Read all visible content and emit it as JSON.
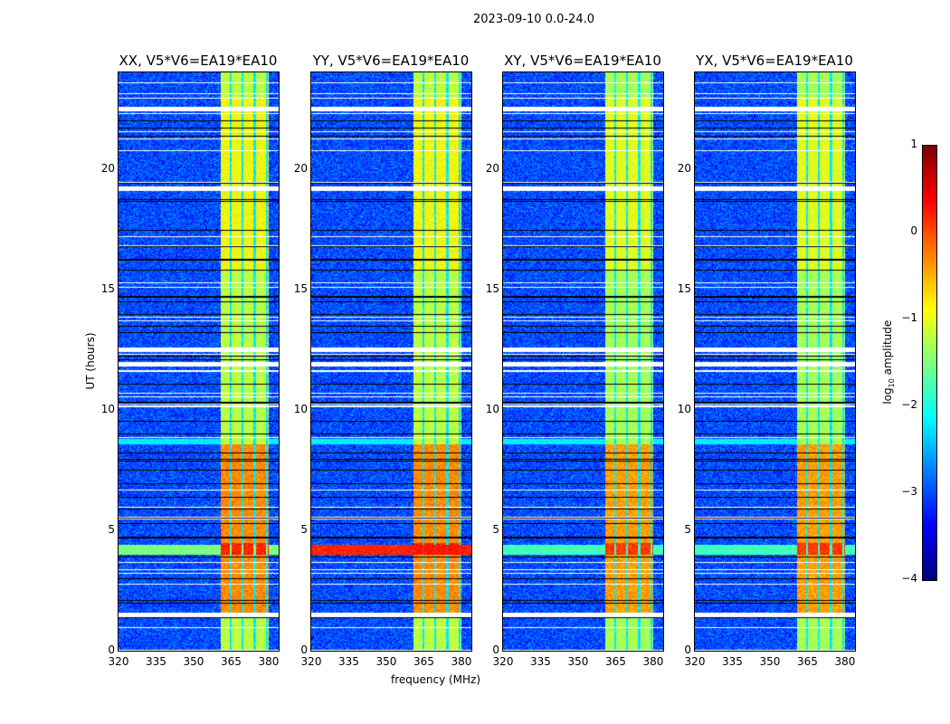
{
  "chart_data": {
    "type": "heatmap",
    "title": "2023-09-10 0.0-24.0",
    "xlabel": "frequency (MHz)",
    "ylabel": "UT (hours)",
    "xlim": [
      320,
      384
    ],
    "ylim": [
      0,
      24
    ],
    "xticks": [
      "320",
      "335",
      "350",
      "365",
      "380"
    ],
    "yticks": [
      "0",
      "5",
      "10",
      "15",
      "20"
    ],
    "panels": [
      {
        "title": "XX, V5*V6=EA19*EA10",
        "band_level": -1.2,
        "rfi_4h_level": -1.5
      },
      {
        "title": "YY, V5*V6=EA19*EA10",
        "band_level": -1.2,
        "rfi_4h_level": 0.2
      },
      {
        "title": "XY, V5*V6=EA19*EA10",
        "band_level": -1.3,
        "rfi_4h_level": -1.8
      },
      {
        "title": "YX, V5*V6=EA19*EA10",
        "band_level": -1.3,
        "rfi_4h_level": -1.8
      }
    ],
    "strong_band_mhz": [
      360.5,
      380
    ],
    "background_level": -3.0,
    "no_data_gaps_hours": [
      [
        1.4,
        1.6
      ],
      [
        11.8,
        12.0
      ],
      [
        12.45,
        12.6
      ],
      [
        19.1,
        19.3
      ],
      [
        22.4,
        22.6
      ]
    ],
    "colorbar": {
      "label": "log10 amplitude",
      "range": [
        -4,
        1
      ],
      "ticks": [
        "1",
        "0",
        "−1",
        "−2",
        "−3",
        "−4"
      ],
      "colormap": "jet"
    }
  }
}
